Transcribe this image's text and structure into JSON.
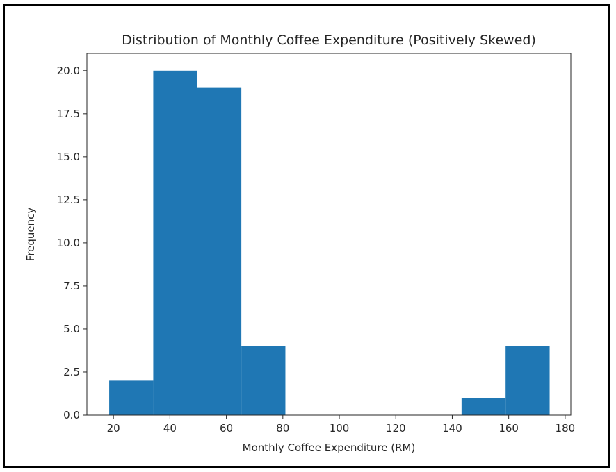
{
  "chart_data": {
    "type": "histogram",
    "title": "Distribution of Monthly Coffee Expenditure (Positively Skewed)",
    "xlabel": "Monthly Coffee Expenditure (RM)",
    "ylabel": "Frequency",
    "xlim": [
      10.6,
      182.0
    ],
    "ylim": [
      0,
      21
    ],
    "x_ticks": [
      20,
      40,
      60,
      80,
      100,
      120,
      140,
      160,
      180
    ],
    "x_tick_labels": [
      "20",
      "40",
      "60",
      "80",
      "100",
      "120",
      "140",
      "160",
      "180"
    ],
    "y_ticks": [
      0,
      2.5,
      5,
      7.5,
      10,
      12.5,
      15,
      17.5,
      20
    ],
    "y_tick_labels": [
      "0.0",
      "2.5",
      "5.0",
      "7.5",
      "10.0",
      "12.5",
      "15.0",
      "17.5",
      "20.0"
    ],
    "bin_edges": [
      18.5,
      34.1,
      49.7,
      65.3,
      80.9,
      96.5,
      112.1,
      127.7,
      143.3,
      158.9,
      174.5
    ],
    "values": [
      2,
      20,
      19,
      4,
      0,
      0,
      0,
      0,
      1,
      4
    ],
    "bar_color": "#1f77b4",
    "grid": false,
    "legend": false
  }
}
